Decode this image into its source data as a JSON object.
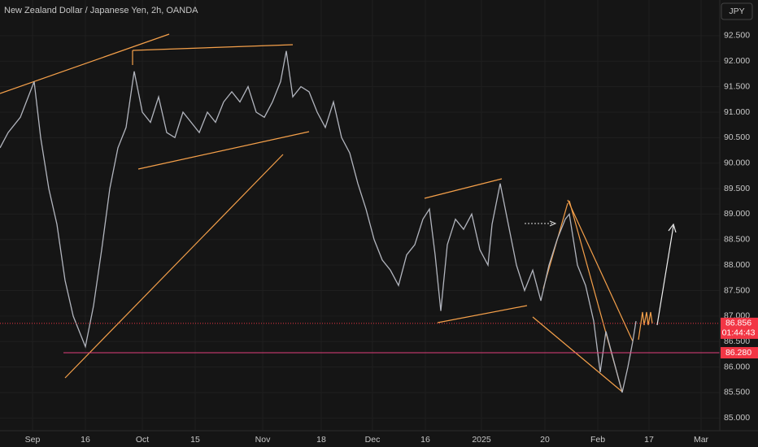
{
  "header": {
    "title": "New Zealand Dollar / Japanese Yen, 2h, OANDA",
    "currency": "JPY"
  },
  "chart_data": {
    "type": "line",
    "color": "#b2b5be",
    "grid": true,
    "x": [
      0,
      10,
      25,
      42,
      50,
      60,
      70,
      80,
      90,
      100,
      105,
      115,
      125,
      135,
      145,
      155,
      165,
      175,
      185,
      195,
      205,
      215,
      225,
      235,
      245,
      255,
      265,
      275,
      285,
      295,
      305,
      315,
      325,
      335,
      345,
      352,
      360,
      370,
      380,
      390,
      400,
      410,
      420,
      430,
      440,
      450,
      460,
      470,
      480,
      490,
      500,
      510,
      520,
      528,
      535,
      542,
      550,
      560,
      570,
      580,
      590,
      600,
      605,
      615,
      625,
      635,
      645,
      655,
      665,
      675,
      685,
      695,
      700,
      710,
      720,
      730,
      738,
      745,
      755,
      765,
      772,
      778,
      782
    ],
    "values": [
      90.3,
      90.6,
      90.9,
      91.6,
      90.5,
      89.5,
      88.8,
      87.7,
      87.0,
      86.6,
      86.4,
      87.2,
      88.3,
      89.5,
      90.3,
      90.7,
      91.8,
      91.0,
      90.8,
      91.3,
      90.6,
      90.5,
      91.0,
      90.8,
      90.6,
      91.0,
      90.8,
      91.2,
      91.4,
      91.2,
      91.5,
      91.0,
      90.9,
      91.2,
      91.6,
      92.2,
      91.3,
      91.5,
      91.4,
      91.0,
      90.7,
      91.2,
      90.5,
      90.2,
      89.6,
      89.1,
      88.5,
      88.1,
      87.9,
      87.6,
      88.2,
      88.4,
      88.9,
      89.1,
      88.2,
      87.1,
      88.4,
      88.9,
      88.7,
      89.0,
      88.3,
      88.0,
      88.8,
      89.6,
      88.8,
      88.0,
      87.5,
      87.9,
      87.3,
      88.0,
      88.5,
      88.9,
      89.0,
      88.0,
      87.6,
      86.9,
      85.9,
      86.7,
      86.1,
      85.5,
      86.0,
      86.5,
      86.9
    ],
    "xlim": [
      0,
      885
    ],
    "ylim": [
      84.75,
      93.2
    ],
    "xticks": [
      {
        "value": 40,
        "label": "Sep"
      },
      {
        "value": 105,
        "label": "16"
      },
      {
        "value": 175,
        "label": "Oct"
      },
      {
        "value": 240,
        "label": "15"
      },
      {
        "value": 323,
        "label": "Nov"
      },
      {
        "value": 395,
        "label": "18"
      },
      {
        "value": 458,
        "label": "Dec"
      },
      {
        "value": 523,
        "label": "16"
      },
      {
        "value": 592,
        "label": "2025"
      },
      {
        "value": 670,
        "label": "20"
      },
      {
        "value": 735,
        "label": "Feb"
      },
      {
        "value": 798,
        "label": "17"
      },
      {
        "value": 862,
        "label": "Mar"
      }
    ],
    "yticks": [
      {
        "value": 85,
        "label": "85.000"
      },
      {
        "value": 85.5,
        "label": "85.500"
      },
      {
        "value": 86,
        "label": "86.000"
      },
      {
        "value": 86.5,
        "label": "86.500"
      },
      {
        "value": 87,
        "label": "87.000"
      },
      {
        "value": 87.5,
        "label": "87.500"
      },
      {
        "value": 88,
        "label": "88.000"
      },
      {
        "value": 88.5,
        "label": "88.500"
      },
      {
        "value": 89,
        "label": "89.000"
      },
      {
        "value": 89.5,
        "label": "89.500"
      },
      {
        "value": 90,
        "label": "90.000"
      },
      {
        "value": 90.5,
        "label": "90.500"
      },
      {
        "value": 91,
        "label": "91.000"
      },
      {
        "value": 91.5,
        "label": "91.500"
      },
      {
        "value": 92,
        "label": "92.000"
      },
      {
        "value": 92.5,
        "label": "92.500"
      }
    ],
    "last_price": {
      "value": 86.856,
      "label": "86.856",
      "countdown": "01:44:43",
      "color": "#f23645"
    },
    "support": {
      "value": 86.28,
      "label": "86.280",
      "color": "#f23645"
    }
  }
}
